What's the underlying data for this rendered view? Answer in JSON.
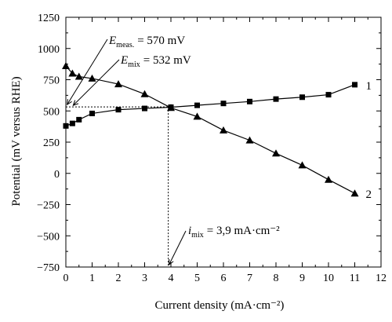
{
  "chart_data": {
    "type": "line",
    "xlabel": "Current density (mA·cm⁻²)",
    "ylabel": "Potential (mV versus RHE)",
    "xlim": [
      0,
      12
    ],
    "ylim": [
      -750,
      1250
    ],
    "x_ticks": [
      "0",
      "1",
      "2",
      "3",
      "4",
      "5",
      "6",
      "7",
      "8",
      "9",
      "10",
      "11",
      "12"
    ],
    "y_ticks": [
      "1250",
      "1000",
      "750",
      "500",
      "250",
      "0",
      "−250",
      "−500",
      "−750"
    ],
    "grid": false,
    "legend": "none",
    "series": [
      {
        "name": "1",
        "marker": "square",
        "x": [
          0,
          0.25,
          0.5,
          1,
          2,
          3,
          4,
          5,
          6,
          7,
          8,
          9,
          10,
          11
        ],
        "y": [
          380,
          400,
          430,
          480,
          510,
          520,
          530,
          545,
          560,
          575,
          595,
          610,
          630,
          710
        ]
      },
      {
        "name": "2",
        "marker": "triangle",
        "x": [
          0,
          0.25,
          0.5,
          1,
          2,
          3,
          4,
          5,
          6,
          7,
          8,
          9,
          10,
          11
        ],
        "y": [
          860,
          800,
          775,
          760,
          715,
          635,
          525,
          455,
          345,
          265,
          160,
          65,
          -50,
          -160
        ]
      }
    ],
    "annotations": {
      "e_meas": {
        "symbol": "E",
        "subscript": "meas.",
        "value": "= 570 mV"
      },
      "e_mix": {
        "symbol": "E",
        "subscript": "mix",
        "value": "= 532 mV"
      },
      "i_mix": {
        "symbol": "i",
        "subscript": "mix",
        "value": "= 3,9 mA·cm⁻²"
      }
    },
    "reference_lines": {
      "e_mix_mv": 532,
      "i_mix": 3.9,
      "e_meas_mv": 570
    },
    "colors": {
      "line": "#000000",
      "marker": "#000000",
      "background": "#ffffff"
    }
  }
}
